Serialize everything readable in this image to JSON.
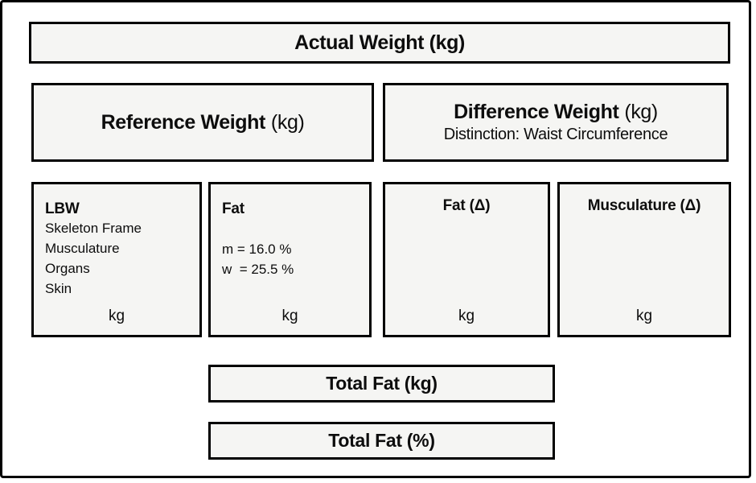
{
  "colors": {
    "box_fill": "#f5f5f3",
    "border": "#000000",
    "page_background": "#ffffff"
  },
  "boxes": {
    "actual_weight": {
      "title": "Actual Weight (kg)"
    },
    "reference_weight": {
      "name": "Reference Weight",
      "unit": "(kg)"
    },
    "difference_weight": {
      "name": "Difference Weight",
      "unit": "(kg)",
      "subtitle": "Distinction: Waist Circumference"
    },
    "lbw": {
      "title": "LBW",
      "components": [
        "Skeleton Frame",
        "Musculature",
        "Organs",
        "Skin"
      ],
      "unit": "kg"
    },
    "fat": {
      "title": "Fat",
      "percent_men": "m = 16.0 %",
      "percent_women": "w  = 25.5 %",
      "unit": "kg"
    },
    "fat_delta": {
      "title": "Fat (Δ)",
      "unit": "kg"
    },
    "musculature_delta": {
      "title": "Musculature (Δ)",
      "unit": "kg"
    },
    "total_fat_kg": {
      "title": "Total Fat (kg)"
    },
    "total_fat_percent": {
      "title": "Total Fat (%)"
    }
  }
}
